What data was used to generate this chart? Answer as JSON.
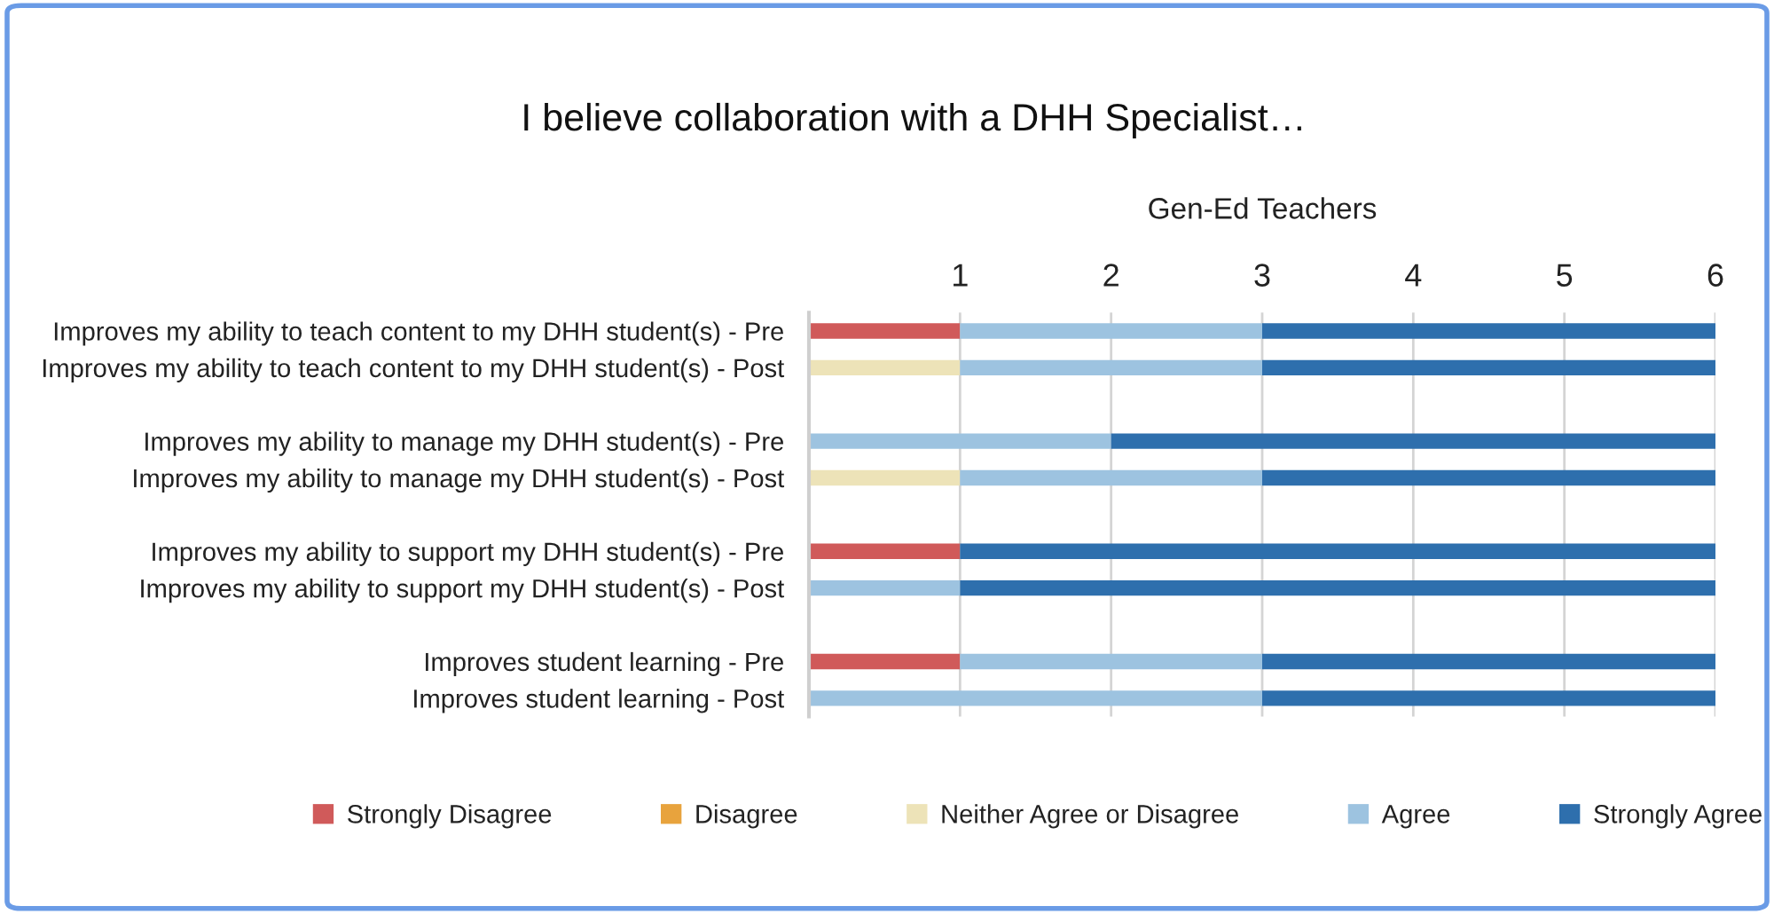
{
  "chart_data": {
    "type": "bar",
    "orientation": "horizontal",
    "stacked": true,
    "title": "I believe collaboration with a DHH Specialist…",
    "xlabel": "Gen-Ed Teachers",
    "categories": [
      "Improves my ability to teach content to my DHH student(s) - Pre",
      "Improves my ability to teach content to my DHH student(s) - Post",
      null,
      "Improves my ability to manage my DHH student(s) - Pre",
      "Improves my ability to manage my DHH student(s) - Post",
      null,
      "Improves my ability to support my DHH student(s) - Pre",
      "Improves my ability to support my DHH student(s) - Post",
      null,
      "Improves student learning - Pre",
      "Improves student learning - Post"
    ],
    "series": [
      {
        "name": "Strongly Disagree",
        "color": "#d05a5a",
        "values": [
          1,
          null,
          null,
          null,
          null,
          null,
          1,
          null,
          null,
          1,
          null
        ]
      },
      {
        "name": "Disagree",
        "color": "#e8a33d",
        "values": [
          null,
          null,
          null,
          null,
          null,
          null,
          null,
          null,
          null,
          null,
          null
        ]
      },
      {
        "name": "Neither Agree or Disagree",
        "color": "#ede3b8",
        "values": [
          null,
          1,
          null,
          null,
          1,
          null,
          null,
          null,
          null,
          null,
          null
        ]
      },
      {
        "name": "Agree",
        "color": "#9dc3e0",
        "values": [
          2,
          2,
          null,
          2,
          2,
          null,
          null,
          1,
          null,
          2,
          3
        ]
      },
      {
        "name": "Strongly Agree",
        "color": "#2e6fad",
        "values": [
          3,
          3,
          null,
          4,
          3,
          null,
          5,
          5,
          null,
          3,
          3
        ]
      }
    ],
    "xlim": [
      0,
      6
    ],
    "xticks": [
      1,
      2,
      3,
      4,
      5,
      6
    ],
    "grid": "x",
    "legend": "bottom"
  }
}
